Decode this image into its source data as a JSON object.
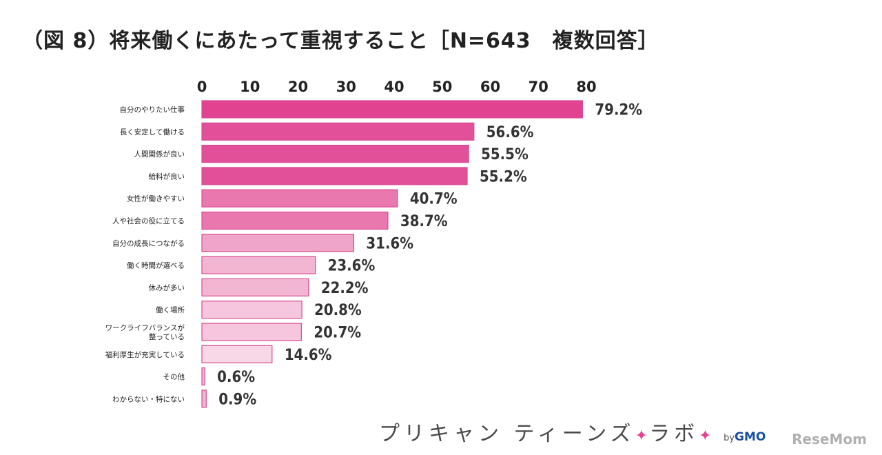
{
  "title": "（図 8）将来働くにあたって重視すること［N=643　複数回答］",
  "brand": {
    "name": "プリキャン ティーンズ",
    "sep": "✦",
    "sub": "ラボ",
    "by": "by",
    "company": "GMO"
  },
  "watermark": "ReseMom",
  "chart_data": {
    "type": "bar",
    "orientation": "horizontal",
    "xlim": [
      0,
      80
    ],
    "ticks": [
      "0",
      "10",
      "20",
      "30",
      "40",
      "50",
      "60",
      "70",
      "80"
    ],
    "tick_position": "top",
    "grid": false,
    "categories": [
      "自分のやりたい仕事",
      "長く安定して働ける",
      "人間関係が良い",
      "給料が良い",
      "女性が働きやすい",
      "人や社会の役に立てる",
      "自分の成長につながる",
      "働く時間が選べる",
      "休みが多い",
      "働く場所",
      "ワークライフバランスが整っている",
      "福利厚生が充実している",
      "その他",
      "わからない・特にない"
    ],
    "category_lines": [
      [
        "自分のやりたい仕事"
      ],
      [
        "長く安定して働ける"
      ],
      [
        "人間関係が良い"
      ],
      [
        "給料が良い"
      ],
      [
        "女性が働きやすい"
      ],
      [
        "人や社会の役に立てる"
      ],
      [
        "自分の成長につながる"
      ],
      [
        "働く時間が選べる"
      ],
      [
        "休みが多い"
      ],
      [
        "働く場所"
      ],
      [
        "ワークライフバランスが",
        "整っている"
      ],
      [
        "福利厚生が充実している"
      ],
      [
        "その他"
      ],
      [
        "わからない・特にない"
      ]
    ],
    "values": [
      79.2,
      56.6,
      55.5,
      55.2,
      40.7,
      38.7,
      31.6,
      23.6,
      22.2,
      20.8,
      20.7,
      14.6,
      0.6,
      0.9
    ],
    "value_labels": [
      "79.2%",
      "56.6%",
      "55.5%",
      "55.2%",
      "40.7%",
      "38.7%",
      "31.6%",
      "23.6%",
      "22.2%",
      "20.8%",
      "20.7%",
      "14.6%",
      "0.6%",
      "0.9%"
    ],
    "colors": {
      "fill": [
        "#e14391",
        "#e3509a",
        "#e3509a",
        "#e3509a",
        "#e878ad",
        "#e878ad",
        "#efa5c9",
        "#f2b6d3",
        "#f2b6d3",
        "#f5c6dd",
        "#f5c6dd",
        "#f8d7e7",
        "#f2b6d3",
        "#f2b6d3"
      ],
      "border": "#d84b91"
    }
  }
}
